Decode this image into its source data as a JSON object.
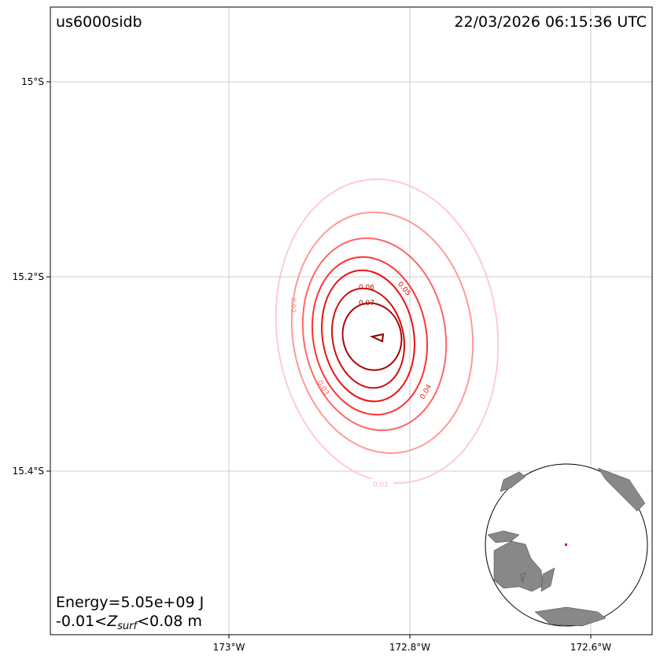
{
  "header": {
    "event_id": "us6000sidb",
    "timestamp": "22/03/2026 06:15:36 UTC"
  },
  "axes": {
    "x_ticks": [
      "173°W",
      "172.8°W",
      "172.6°W"
    ],
    "y_ticks": [
      "15°S",
      "15.2°S",
      "15.4°S"
    ]
  },
  "contour_labels": [
    "0.01",
    "0.02",
    "0.03",
    "0.04",
    "0.05",
    "0.06",
    "0.07"
  ],
  "annotation": {
    "energy": "Energy=5.05e+09 J",
    "range_prefix": "-0.01<",
    "z": "Z",
    "sub": "surf",
    "range_suffix": "<0.08 m"
  }
}
